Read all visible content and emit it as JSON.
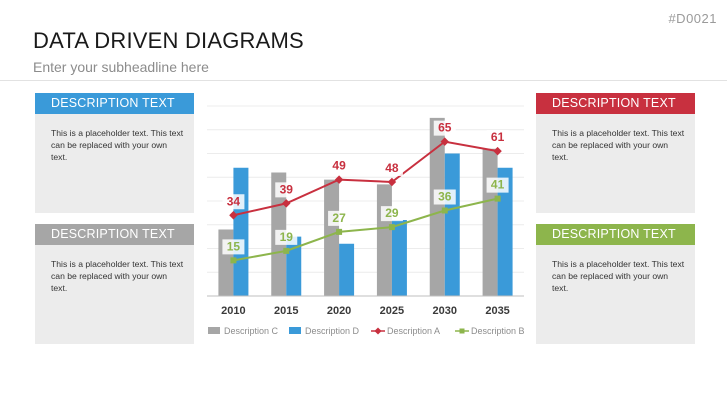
{
  "slide_id": "#D0021",
  "title": "DATA DRIVEN DIAGRAMS",
  "subtitle": "Enter your subheadline here",
  "colors": {
    "blue": "#3a9ad9",
    "gray": "#a6a6a6",
    "red": "#c8303f",
    "green": "#8db54c"
  },
  "cards": [
    {
      "id": "tl",
      "header": "DESCRIPTION TEXT",
      "color": "#3a9ad9",
      "body": "This is a placeholder text. This text can be replaced with your own text."
    },
    {
      "id": "bl",
      "header": "DESCRIPTION TEXT",
      "color": "#a6a6a6",
      "body": "This is a placeholder text. This text can be replaced with your own text."
    },
    {
      "id": "tr",
      "header": "DESCRIPTION TEXT",
      "color": "#c8303f",
      "body": "This is a placeholder text. This text can be replaced with your own text."
    },
    {
      "id": "br",
      "header": "DESCRIPTION TEXT",
      "color": "#8db54c",
      "body": "This is a placeholder text. This text can be replaced with your own text."
    }
  ],
  "chart_data": {
    "type": "bar",
    "categories": [
      "2010",
      "2015",
      "2020",
      "2025",
      "2030",
      "2035"
    ],
    "ylim": [
      0,
      80
    ],
    "grid": true,
    "legend_position": "bottom",
    "series": [
      {
        "name": "Description C",
        "kind": "bar",
        "color": "#a6a6a6",
        "values": [
          28,
          52,
          49,
          47,
          75,
          62
        ]
      },
      {
        "name": "Description D",
        "kind": "bar",
        "color": "#3a9ad9",
        "values": [
          54,
          25,
          22,
          32,
          60,
          54
        ]
      },
      {
        "name": "Description A",
        "kind": "line",
        "color": "#c8303f",
        "values": [
          34,
          39,
          49,
          48,
          65,
          61
        ]
      },
      {
        "name": "Description B",
        "kind": "line",
        "color": "#8db54c",
        "values": [
          15,
          19,
          27,
          29,
          36,
          41
        ]
      }
    ]
  }
}
